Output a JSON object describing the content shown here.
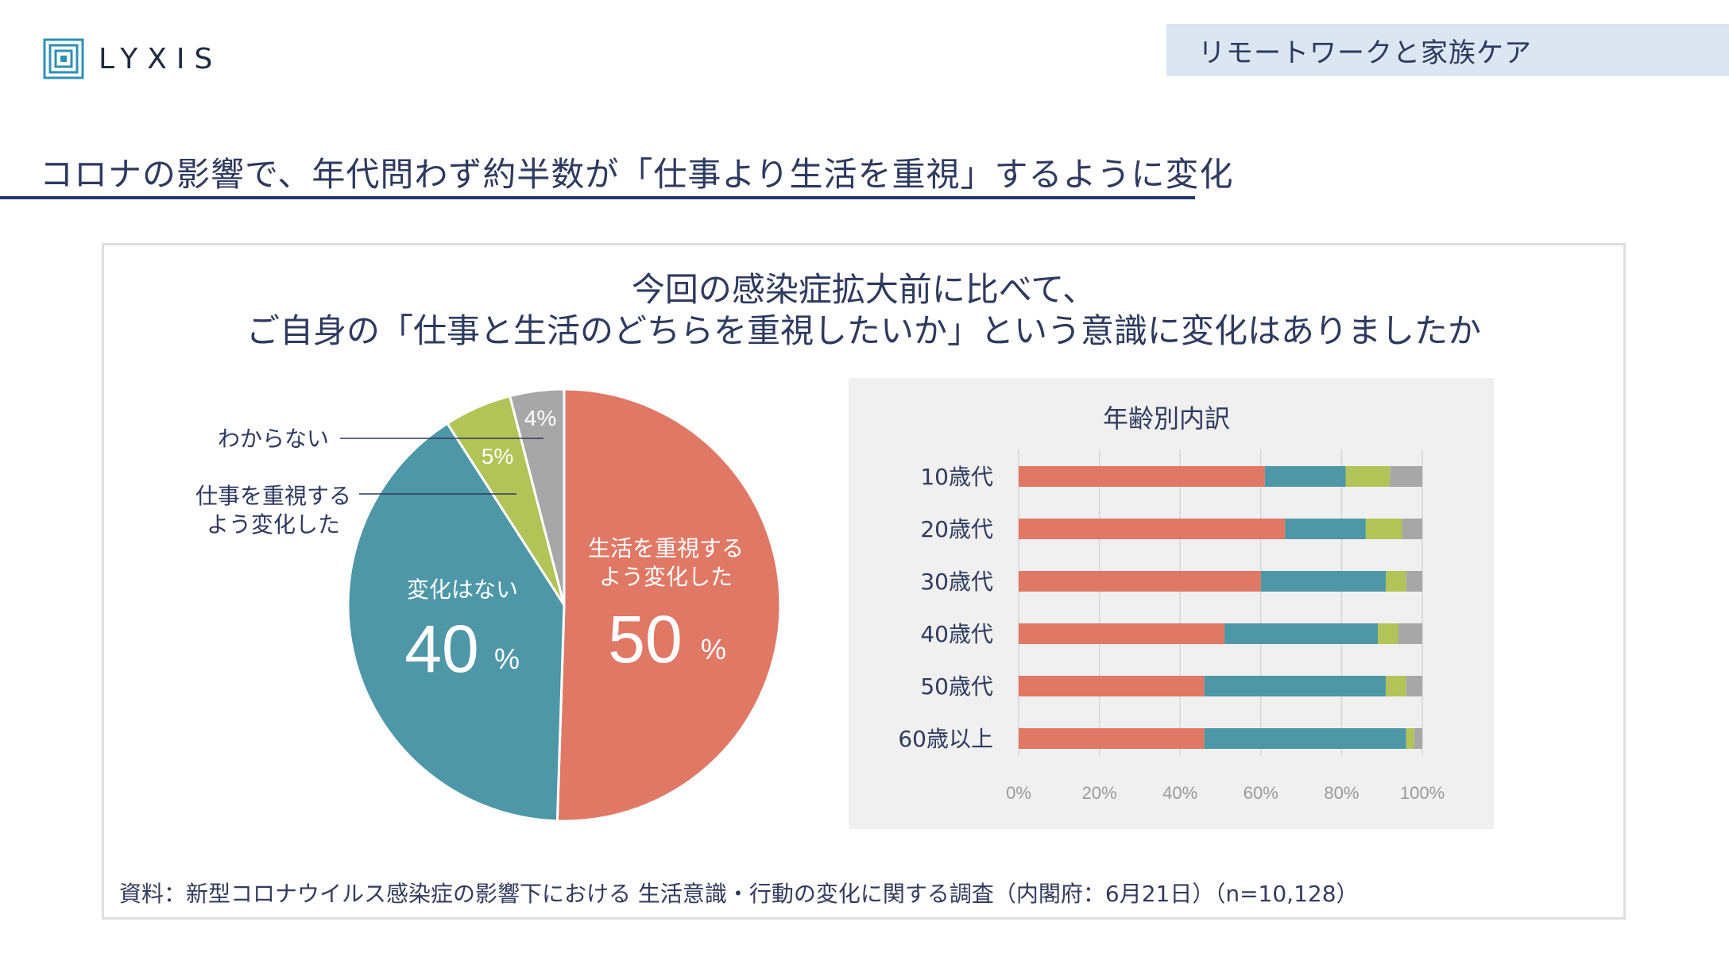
{
  "logo": {
    "text": "LYXIS",
    "icon": "square-spiral-logo-icon"
  },
  "topic_badge": "リモートワークと家族ケア",
  "headline": "コロナの影響で、年代問わず約半数が「仕事より生活を重視」するように変化",
  "question": {
    "line1": "今回の感染症拡大前に比べて、",
    "line2": "ご自身の「仕事と生活のどちらを重視したいか」という意識に変化はありましたか"
  },
  "colors": {
    "life": "#e07866",
    "no_change": "#4e97a7",
    "work": "#b2c457",
    "unknown": "#a7a7a7",
    "text": "#2e3a5e",
    "accent_rule": "#22386b"
  },
  "chart_data": [
    {
      "type": "pie",
      "slices": [
        {
          "label_line1": "生活を重視する",
          "label_line2": "よう変化した",
          "value": 50,
          "value_text": "50",
          "unit": "%",
          "color": "#e07866"
        },
        {
          "label_line1": "変化はない",
          "label_line2": "",
          "value": 40,
          "value_text": "40",
          "unit": "%",
          "color": "#4e97a7"
        },
        {
          "label_line1": "仕事を重視する",
          "label_line2": "よう変化した",
          "value": 5,
          "value_text": "5%",
          "unit": "",
          "color": "#b2c457"
        },
        {
          "label_line1": "わからない",
          "label_line2": "",
          "value": 4,
          "value_text": "4%",
          "unit": "",
          "color": "#a7a7a7"
        }
      ]
    },
    {
      "type": "bar",
      "orientation": "horizontal",
      "stacked": "percent",
      "title": "年齢別内訳",
      "categories": [
        "10歳代",
        "20歳代",
        "30歳代",
        "40歳代",
        "50歳代",
        "60歳以上"
      ],
      "series": [
        {
          "key": "life",
          "color": "#e07866",
          "values": [
            61,
            66,
            60,
            51,
            46,
            46
          ]
        },
        {
          "key": "no_change",
          "color": "#4e97a7",
          "values": [
            20,
            20,
            31,
            38,
            45,
            50
          ]
        },
        {
          "key": "work",
          "color": "#b2c457",
          "values": [
            11,
            9,
            5,
            5,
            5,
            2
          ]
        },
        {
          "key": "unknown",
          "color": "#a7a7a7",
          "values": [
            8,
            5,
            4,
            6,
            4,
            2
          ]
        }
      ],
      "xlim": [
        0,
        100
      ],
      "xticks": [
        "0%",
        "20%",
        "40%",
        "60%",
        "80%",
        "100%"
      ],
      "grid": "vertical"
    }
  ],
  "source": "資料：新型コロナウイルス感染症の影響下における 生活意識・行動の変化に関する調査（内閣府：6月21日）（n=10,128）"
}
